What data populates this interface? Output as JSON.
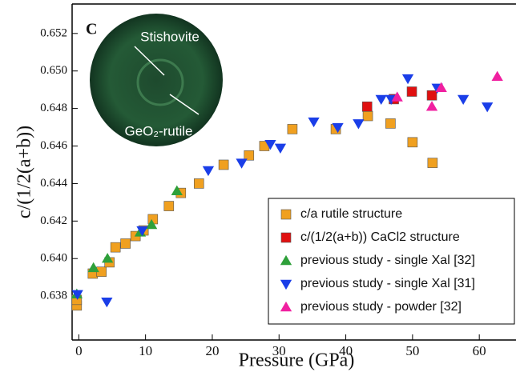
{
  "chart_data": {
    "type": "scatter",
    "panel_label": "C",
    "xlabel": "Pressure (GPa)",
    "ylabel": "c/(1/2(a+b))",
    "annotations": [
      "Stishovite",
      "GeO₂-rutile"
    ],
    "xlim": [
      -1,
      65.5
    ],
    "ylim": [
      0.63566,
      0.65357
    ],
    "xticks": [
      0,
      10,
      20,
      30,
      40,
      50,
      60
    ],
    "yticks": [
      0.638,
      {
        "value": 0.64,
        "label": "0.640"
      },
      0.642,
      0.644,
      0.646,
      0.648,
      {
        "value": 0.65,
        "label": "0.650"
      },
      0.652
    ],
    "legend": "lower right",
    "series": [
      {
        "name": "c/a rutile structure",
        "color": "#f0a020",
        "marker": "square",
        "x": [
          -0.3,
          -0.3,
          2.1,
          3.4,
          4.6,
          5.5,
          7.0,
          8.5,
          9.7,
          11.1,
          13.5,
          15.3,
          18.0,
          21.7,
          25.5,
          27.8,
          32.0,
          38.5,
          43.3,
          46.7,
          50.0,
          53.0
        ],
        "values": [
          0.6375,
          0.6378,
          0.6392,
          0.6393,
          0.6398,
          0.6406,
          0.6408,
          0.6412,
          0.6415,
          0.6421,
          0.6428,
          0.6435,
          0.644,
          0.645,
          0.6455,
          0.646,
          0.6469,
          0.6469,
          0.6476,
          0.6472,
          0.6462,
          0.6451
        ]
      },
      {
        "name": "c/(1/2(a+b)) CaCl2 structure",
        "color": "#e01010",
        "marker": "square",
        "x": [
          43.2,
          47.2,
          49.9,
          52.9
        ],
        "values": [
          0.6481,
          0.6485,
          0.6489,
          0.6487
        ]
      },
      {
        "name": "previous study - single Xal [32]",
        "color": "#2ea03a",
        "marker": "triangle-up",
        "x": [
          -0.3,
          2.2,
          4.3,
          9.2,
          10.9,
          14.7
        ],
        "values": [
          0.6381,
          0.6395,
          0.64,
          0.6414,
          0.6418,
          0.6436
        ]
      },
      {
        "name": "previous study - single Xal [31]",
        "color": "#1a3ee8",
        "marker": "triangle-down",
        "x": [
          -0.2,
          4.2,
          9.5,
          19.4,
          24.4,
          28.7,
          30.2,
          35.2,
          38.8,
          41.9,
          45.3,
          46.8,
          49.3,
          53.7,
          57.6,
          61.2
        ],
        "values": [
          0.6381,
          0.6377,
          0.6415,
          0.6447,
          0.6451,
          0.6461,
          0.6459,
          0.6473,
          0.647,
          0.6472,
          0.6485,
          0.6485,
          0.6496,
          0.6491,
          0.6485,
          0.6481
        ]
      },
      {
        "name": "previous study - powder [32]",
        "color": "#f020a0",
        "marker": "triangle-up",
        "x": [
          47.7,
          52.9,
          54.3,
          62.7
        ],
        "values": [
          0.6486,
          0.6481,
          0.6491,
          0.6497
        ]
      }
    ]
  }
}
